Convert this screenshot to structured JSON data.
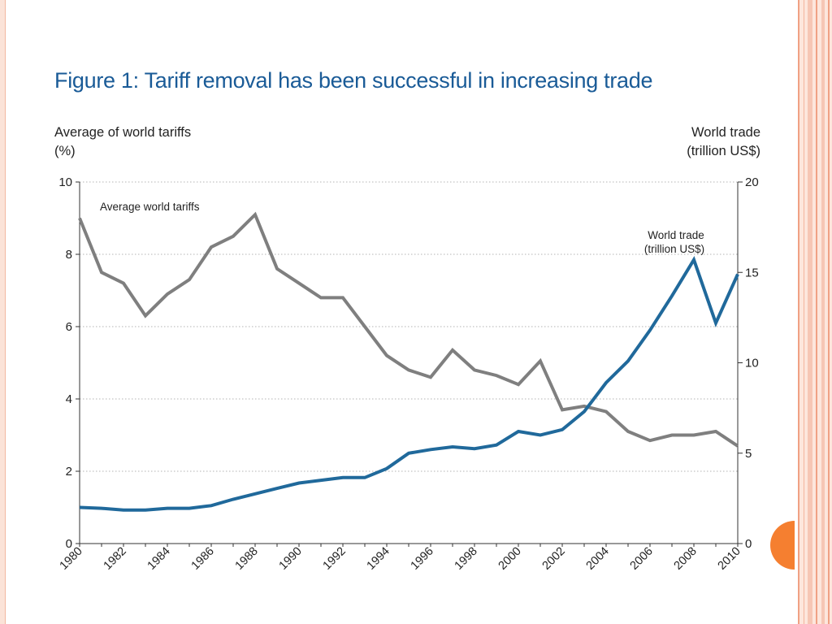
{
  "slide": {
    "title": "Figure 1: Tariff removal has been successful in increasing trade",
    "accent_color": "#f57f30",
    "border_color": "#f6c6b4"
  },
  "chart_data": {
    "type": "line",
    "title": "Figure 1: Tariff removal has been successful in increasing trade",
    "xlabel": "",
    "ylabel_left_line1": "Average of world tariffs",
    "ylabel_left_line2": "(%)",
    "ylabel_right_line1": "World trade",
    "ylabel_right_line2": "(trillion US$)",
    "x": [
      1980,
      1981,
      1982,
      1983,
      1984,
      1985,
      1986,
      1987,
      1988,
      1989,
      1990,
      1991,
      1992,
      1993,
      1994,
      1995,
      1996,
      1997,
      1998,
      1999,
      2000,
      2001,
      2002,
      2003,
      2004,
      2005,
      2006,
      2007,
      2008,
      2009,
      2010
    ],
    "xticks": [
      "1980",
      "1982",
      "1984",
      "1986",
      "1988",
      "1990",
      "1992",
      "1994",
      "1996",
      "1998",
      "2000",
      "2002",
      "2004",
      "2006",
      "2008",
      "2010"
    ],
    "xlim": [
      1980,
      2010
    ],
    "ylim_left": [
      0,
      10
    ],
    "yticks_left": [
      "0",
      "2",
      "4",
      "6",
      "8",
      "10"
    ],
    "ylim_right": [
      0,
      20
    ],
    "yticks_right": [
      "0",
      "5",
      "10",
      "15",
      "20"
    ],
    "grid": "horizontal dotted",
    "series": [
      {
        "name": "Average world tariffs",
        "label": "Average world tariffs",
        "axis": "left",
        "color": "#7f7f7f",
        "values": [
          9.0,
          7.5,
          7.2,
          6.3,
          6.9,
          7.3,
          8.2,
          8.5,
          9.1,
          7.6,
          7.2,
          6.8,
          6.8,
          6.0,
          5.2,
          4.8,
          4.6,
          5.35,
          4.8,
          4.65,
          4.4,
          5.05,
          3.7,
          3.8,
          3.65,
          3.1,
          2.85,
          3.0,
          3.0,
          3.1,
          2.7
        ]
      },
      {
        "name": "World trade (trillion US$)",
        "label_line1": "World trade",
        "label_line2": "(trillion  US$)",
        "axis": "right",
        "color": "#20699b",
        "values": [
          2.0,
          1.95,
          1.85,
          1.85,
          1.95,
          1.95,
          2.1,
          2.45,
          2.75,
          3.05,
          3.35,
          3.5,
          3.65,
          3.65,
          4.15,
          5.0,
          5.2,
          5.35,
          5.25,
          5.45,
          6.2,
          6.0,
          6.3,
          7.3,
          8.9,
          10.1,
          11.8,
          13.7,
          15.7,
          12.2,
          14.9
        ]
      }
    ]
  }
}
